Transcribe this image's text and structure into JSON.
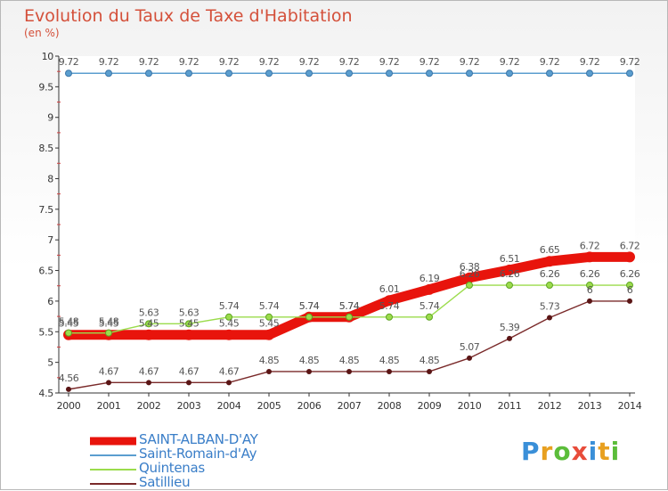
{
  "title": "Evolution du Taux de Taxe d'Habitation",
  "unit": "(en %)",
  "logo": "Proxiti",
  "chart_data": {
    "type": "line",
    "title": "Evolution du Taux de Taxe d'Habitation",
    "ylabel": "(en %)",
    "xlabel": "",
    "ylim": [
      4.5,
      10
    ],
    "yticks": [
      "4.5",
      "5",
      "5.5",
      "6",
      "6.5",
      "7",
      "7.5",
      "8",
      "8.5",
      "9",
      "9.5",
      "10"
    ],
    "categories": [
      "2000",
      "2001",
      "2002",
      "2003",
      "2004",
      "2005",
      "2006",
      "2007",
      "2008",
      "2009",
      "2010",
      "2011",
      "2012",
      "2013",
      "2014"
    ],
    "grid": false,
    "legend": "bottom-left",
    "series": [
      {
        "name": "SAINT-ALBAN-D'AY",
        "color": "#e8140c",
        "values": [
          5.45,
          5.45,
          5.45,
          5.45,
          5.45,
          5.45,
          5.74,
          5.74,
          6.01,
          6.19,
          6.38,
          6.51,
          6.65,
          6.72,
          6.72
        ],
        "labels": [
          "5.45",
          "5.45",
          "5.45",
          "5.45",
          "5.45",
          "5.45",
          "5.74",
          "5.74",
          "6.01",
          "6.19",
          "6.38",
          "6.51",
          "6.65",
          "6.72",
          "6.72"
        ]
      },
      {
        "name": "Saint-Romain-d'Ay",
        "color": "#5b9ecf",
        "values": [
          9.72,
          9.72,
          9.72,
          9.72,
          9.72,
          9.72,
          9.72,
          9.72,
          9.72,
          9.72,
          9.72,
          9.72,
          9.72,
          9.72,
          9.72
        ],
        "labels": [
          "9.72",
          "9.72",
          "9.72",
          "9.72",
          "9.72",
          "9.72",
          "9.72",
          "9.72",
          "9.72",
          "9.72",
          "9.72",
          "9.72",
          "9.72",
          "9.72",
          "9.72"
        ]
      },
      {
        "name": "Quintenas",
        "color": "#9bdc4c",
        "values": [
          5.48,
          5.48,
          5.63,
          5.63,
          5.74,
          5.74,
          5.74,
          5.74,
          5.74,
          5.74,
          6.26,
          6.26,
          6.26,
          6.26,
          6.26
        ],
        "labels": [
          "5.48",
          "5.48",
          "5.63",
          "5.63",
          "5.74",
          "5.74",
          "5.74",
          "5.74",
          "5.74",
          "5.74",
          "6.26",
          "6.26",
          "6.26",
          "6.26",
          "6.26"
        ]
      },
      {
        "name": "Satillieu",
        "color": "#7a2a2a",
        "values": [
          4.56,
          4.67,
          4.67,
          4.67,
          4.67,
          4.85,
          4.85,
          4.85,
          4.85,
          4.85,
          5.07,
          5.39,
          5.73,
          6,
          6
        ],
        "labels": [
          "4.56",
          "4.67",
          "4.67",
          "4.67",
          "4.67",
          "4.85",
          "4.85",
          "4.85",
          "4.85",
          "4.85",
          "5.07",
          "5.39",
          "5.73",
          "6",
          "6"
        ]
      }
    ]
  }
}
